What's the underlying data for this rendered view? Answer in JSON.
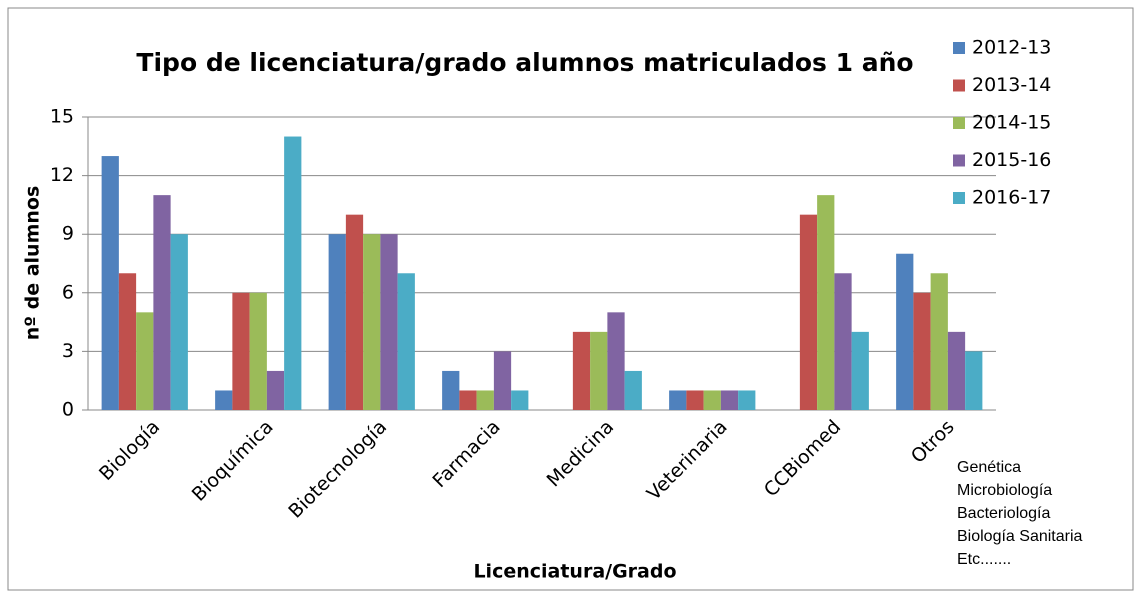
{
  "chart_data": {
    "type": "bar",
    "title": "Tipo de licenciatura/grado alumnos matriculados 1 año",
    "x_label": "Licenciatura/Grado",
    "y_label": "nº de alumnos",
    "categories": [
      "Biología",
      "Bioquímica",
      "Biotecnología",
      "Farmacia",
      "Medicina",
      "Veterinaria",
      "CCBiomed",
      "Otros"
    ],
    "series": [
      {
        "name": "2012-13",
        "color": "#4f81bd",
        "values": [
          13,
          1,
          9,
          2,
          0,
          1,
          0,
          8
        ]
      },
      {
        "name": "2013-14",
        "color": "#c0504d",
        "values": [
          7,
          6,
          10,
          1,
          4,
          1,
          10,
          6
        ]
      },
      {
        "name": "2014-15",
        "color": "#9bbb59",
        "values": [
          5,
          6,
          9,
          1,
          4,
          1,
          11,
          7
        ]
      },
      {
        "name": "2015-16",
        "color": "#8064a2",
        "values": [
          11,
          2,
          9,
          3,
          5,
          1,
          7,
          4
        ]
      },
      {
        "name": "2016-17",
        "color": "#4bacc6",
        "values": [
          9,
          14,
          7,
          1,
          2,
          1,
          4,
          3
        ]
      }
    ],
    "ylim": [
      0,
      15
    ],
    "yticks": [
      0,
      3,
      6,
      9,
      12,
      15
    ],
    "grid": true,
    "legend": "right",
    "annotations": [
      "Genética",
      "Microbiología",
      "Bacteriología",
      "Biología Sanitaria",
      "Etc......."
    ]
  }
}
